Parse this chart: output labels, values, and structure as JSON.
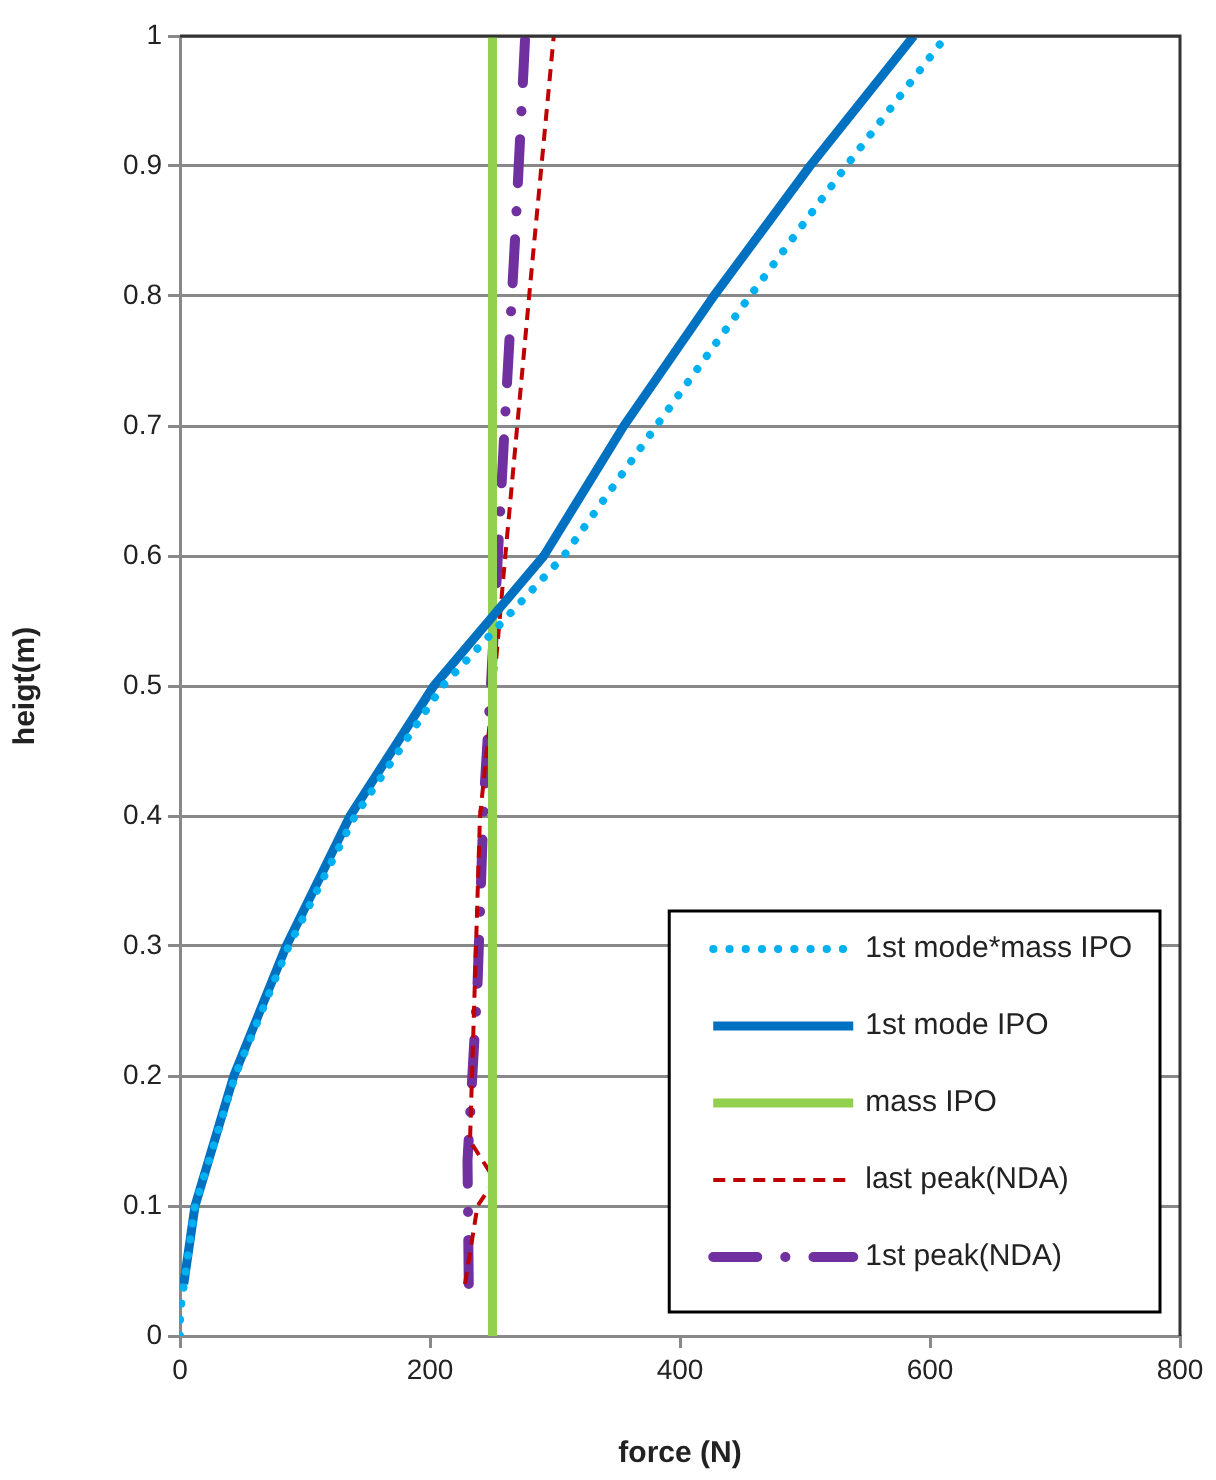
{
  "chart_data": {
    "type": "line",
    "xlabel": "force (N)",
    "ylabel": "heigt(m)",
    "xlim": [
      0,
      800
    ],
    "xticks": [
      0,
      200,
      400,
      600,
      800
    ],
    "ylim": [
      0,
      1
    ],
    "yticks": [
      0,
      0.1,
      0.2,
      0.3,
      0.4,
      0.5,
      0.6,
      0.7,
      0.8,
      0.9,
      1
    ],
    "grid": "y",
    "legend": "bottom right",
    "marker": "none",
    "series": [
      {
        "name": "1st mode*mass IPO",
        "color": "#00b0f0",
        "line_style": "dotted",
        "x": [
          0,
          0,
          12,
          44,
          87,
          140,
          210,
          307,
          381,
          456,
          533,
          613
        ],
        "values": [
          0,
          0.018,
          0.1,
          0.2,
          0.3,
          0.4,
          0.5,
          0.6,
          0.7,
          0.8,
          0.9,
          1
        ]
      },
      {
        "name": "1st mode IPO",
        "color": "#0070c0",
        "line_style": "solid",
        "x": [
          3,
          12,
          43,
          85,
          136,
          203,
          291,
          355,
          427,
          504,
          587
        ],
        "values": [
          0.04,
          0.1,
          0.2,
          0.3,
          0.4,
          0.5,
          0.6,
          0.7,
          0.8,
          0.9,
          1
        ]
      },
      {
        "name": "mass IPO",
        "color": "#92d050",
        "line_style": "solid",
        "x": [
          250,
          250
        ],
        "values": [
          0,
          1
        ]
      },
      {
        "name": "last peak(NDA)",
        "color": "#c00000",
        "line_style": "dashed",
        "x": [
          228,
          238,
          252,
          232,
          240,
          252,
          259,
          280,
          299
        ],
        "values": [
          0.04,
          0.1,
          0.12,
          0.15,
          0.4,
          0.51,
          0.587,
          0.807,
          1
        ]
      },
      {
        "name": "1st peak(NDA)",
        "color": "#7030a0",
        "line_style": "dashdot",
        "x": [
          231,
          230,
          238,
          243,
          249,
          253,
          260,
          268,
          276
        ],
        "values": [
          0.04,
          0.135,
          0.27,
          0.41,
          0.505,
          0.577,
          0.705,
          0.843,
          0.997
        ]
      }
    ]
  }
}
